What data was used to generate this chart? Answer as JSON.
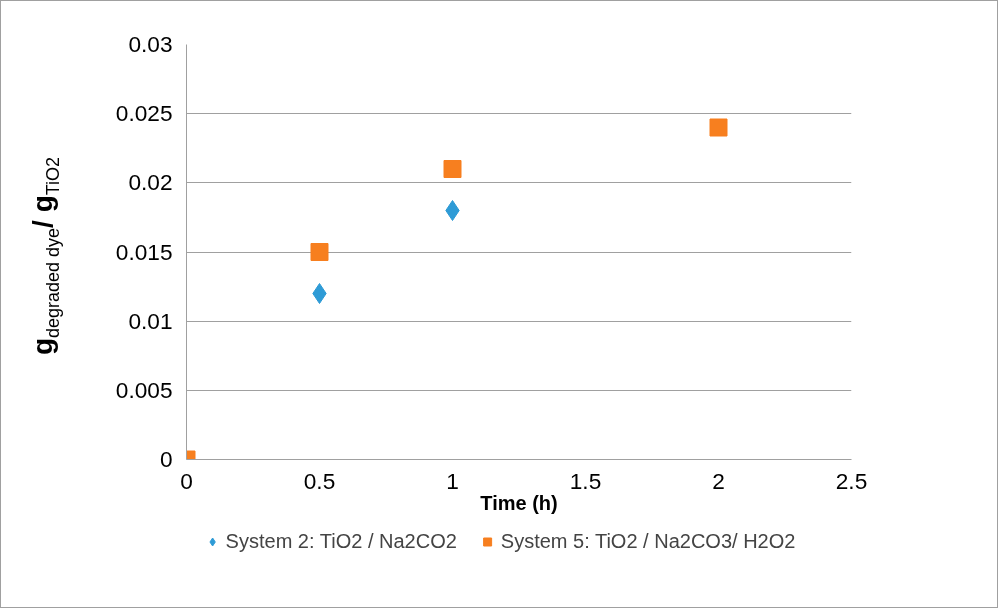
{
  "chart_data": {
    "type": "scatter",
    "xlabel": "Time (h)",
    "ylabel": "g$_{degraded dye}$/ g$_{TiO2}$",
    "xlim": [
      0,
      2.5
    ],
    "xticks": [
      0,
      0.5,
      1,
      1.5,
      2,
      2.5
    ],
    "ylim": [
      0,
      0.03
    ],
    "yticks": [
      0,
      0.005,
      0.01,
      0.015,
      0.02,
      0.025,
      0.03
    ],
    "grid": "y",
    "legend": "bottom",
    "series": [
      {
        "name": "System 2: TiO2 / Na2CO2",
        "color": "#2e9bd6",
        "marker": "diamond",
        "x": [
          0.5,
          1
        ],
        "values": [
          0.012,
          0.018
        ]
      },
      {
        "name": "System 5: TiO2 / Na2CO3/ H2O2",
        "color": "#f77f1f",
        "marker": "square",
        "x": [
          0,
          0.5,
          1,
          2
        ],
        "values": [
          0,
          0.015,
          0.021,
          0.024
        ]
      }
    ]
  }
}
